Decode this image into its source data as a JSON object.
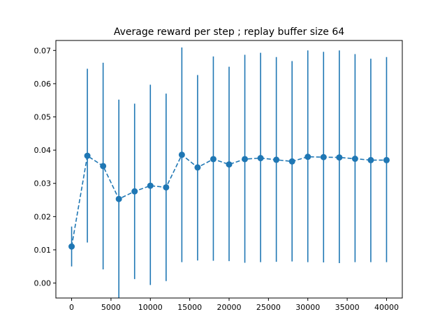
{
  "chart_data": {
    "type": "line",
    "title": "Average reward per step ; replay buffer size 64",
    "xlabel": "",
    "ylabel": "",
    "xlim": [
      -2000,
      42000
    ],
    "ylim": [
      -0.0045,
      0.073
    ],
    "x_ticks": [
      0,
      5000,
      10000,
      15000,
      20000,
      25000,
      30000,
      35000,
      40000
    ],
    "x_tick_labels": [
      "0",
      "5000",
      "10000",
      "15000",
      "20000",
      "25000",
      "30000",
      "35000",
      "40000"
    ],
    "y_ticks": [
      0.0,
      0.01,
      0.02,
      0.03,
      0.04,
      0.05,
      0.06,
      0.07
    ],
    "y_tick_labels": [
      "0.00",
      "0.01",
      "0.02",
      "0.03",
      "0.04",
      "0.05",
      "0.06",
      "0.07"
    ],
    "grid": false,
    "legend": "none",
    "colors": {
      "series": "#1f77b4"
    },
    "series": [
      {
        "x": [
          0,
          2000,
          4000,
          6000,
          8000,
          10000,
          12000,
          14000,
          16000,
          18000,
          20000,
          22000,
          24000,
          26000,
          28000,
          30000,
          32000,
          34000,
          36000,
          38000,
          40000
        ],
        "y": [
          0.011,
          0.0383,
          0.0352,
          0.0253,
          0.0276,
          0.0293,
          0.0288,
          0.0386,
          0.0348,
          0.0373,
          0.0357,
          0.0373,
          0.0376,
          0.0371,
          0.0366,
          0.038,
          0.0379,
          0.0378,
          0.0374,
          0.037,
          0.037
        ],
        "y_low": [
          0.005,
          0.0122,
          0.0041,
          -0.0045,
          0.0012,
          -0.0006,
          0.0006,
          0.0063,
          0.0068,
          0.0067,
          0.0066,
          0.0061,
          0.0063,
          0.0064,
          0.0065,
          0.0063,
          0.0062,
          0.006,
          0.0063,
          0.0063,
          0.0063
        ],
        "y_high": [
          0.017,
          0.0645,
          0.0663,
          0.0552,
          0.054,
          0.0597,
          0.057,
          0.0709,
          0.0626,
          0.0682,
          0.0651,
          0.0687,
          0.0693,
          0.068,
          0.0668,
          0.07,
          0.0696,
          0.07,
          0.0689,
          0.0675,
          0.068
        ]
      }
    ]
  }
}
